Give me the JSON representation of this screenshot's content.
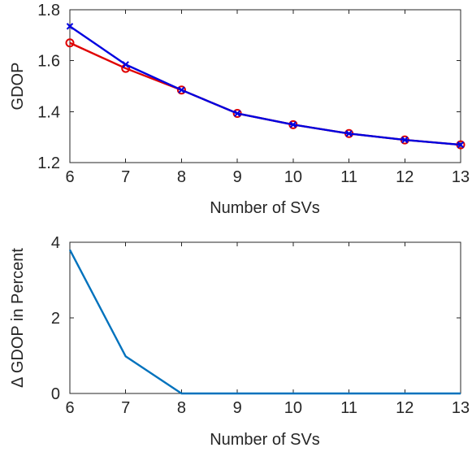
{
  "chart_data": [
    {
      "type": "line",
      "xlabel": "Number of SVs",
      "ylabel": "GDOP",
      "x": [
        6,
        7,
        8,
        9,
        10,
        11,
        12,
        13
      ],
      "xlim": [
        6,
        13
      ],
      "ylim": [
        1.2,
        1.8
      ],
      "xticks": [
        "6",
        "7",
        "8",
        "9",
        "10",
        "11",
        "12",
        "13"
      ],
      "yticks": [
        "1.2",
        "1.4",
        "1.6",
        "1.8"
      ],
      "grid": false,
      "series": [
        {
          "marker": "circle",
          "color": "#e00000",
          "values": [
            1.67,
            1.57,
            1.485,
            1.393,
            1.349,
            1.314,
            1.289,
            1.27
          ]
        },
        {
          "marker": "x",
          "color": "#0000e0",
          "values": [
            1.735,
            1.585,
            1.485,
            1.393,
            1.349,
            1.314,
            1.289,
            1.27
          ]
        }
      ]
    },
    {
      "type": "line",
      "xlabel": "Number of SVs",
      "ylabel": "Δ GDOP in Percent",
      "x": [
        6,
        7,
        8,
        9,
        10,
        11,
        12,
        13
      ],
      "xlim": [
        6,
        13
      ],
      "ylim": [
        0,
        4
      ],
      "xticks": [
        "6",
        "7",
        "8",
        "9",
        "10",
        "11",
        "12",
        "13"
      ],
      "yticks": [
        "0",
        "2",
        "4"
      ],
      "grid": false,
      "series": [
        {
          "marker": "none",
          "color": "#0072bd",
          "values": [
            3.8,
            0.98,
            0,
            0,
            0,
            0,
            0,
            0
          ]
        }
      ]
    }
  ]
}
